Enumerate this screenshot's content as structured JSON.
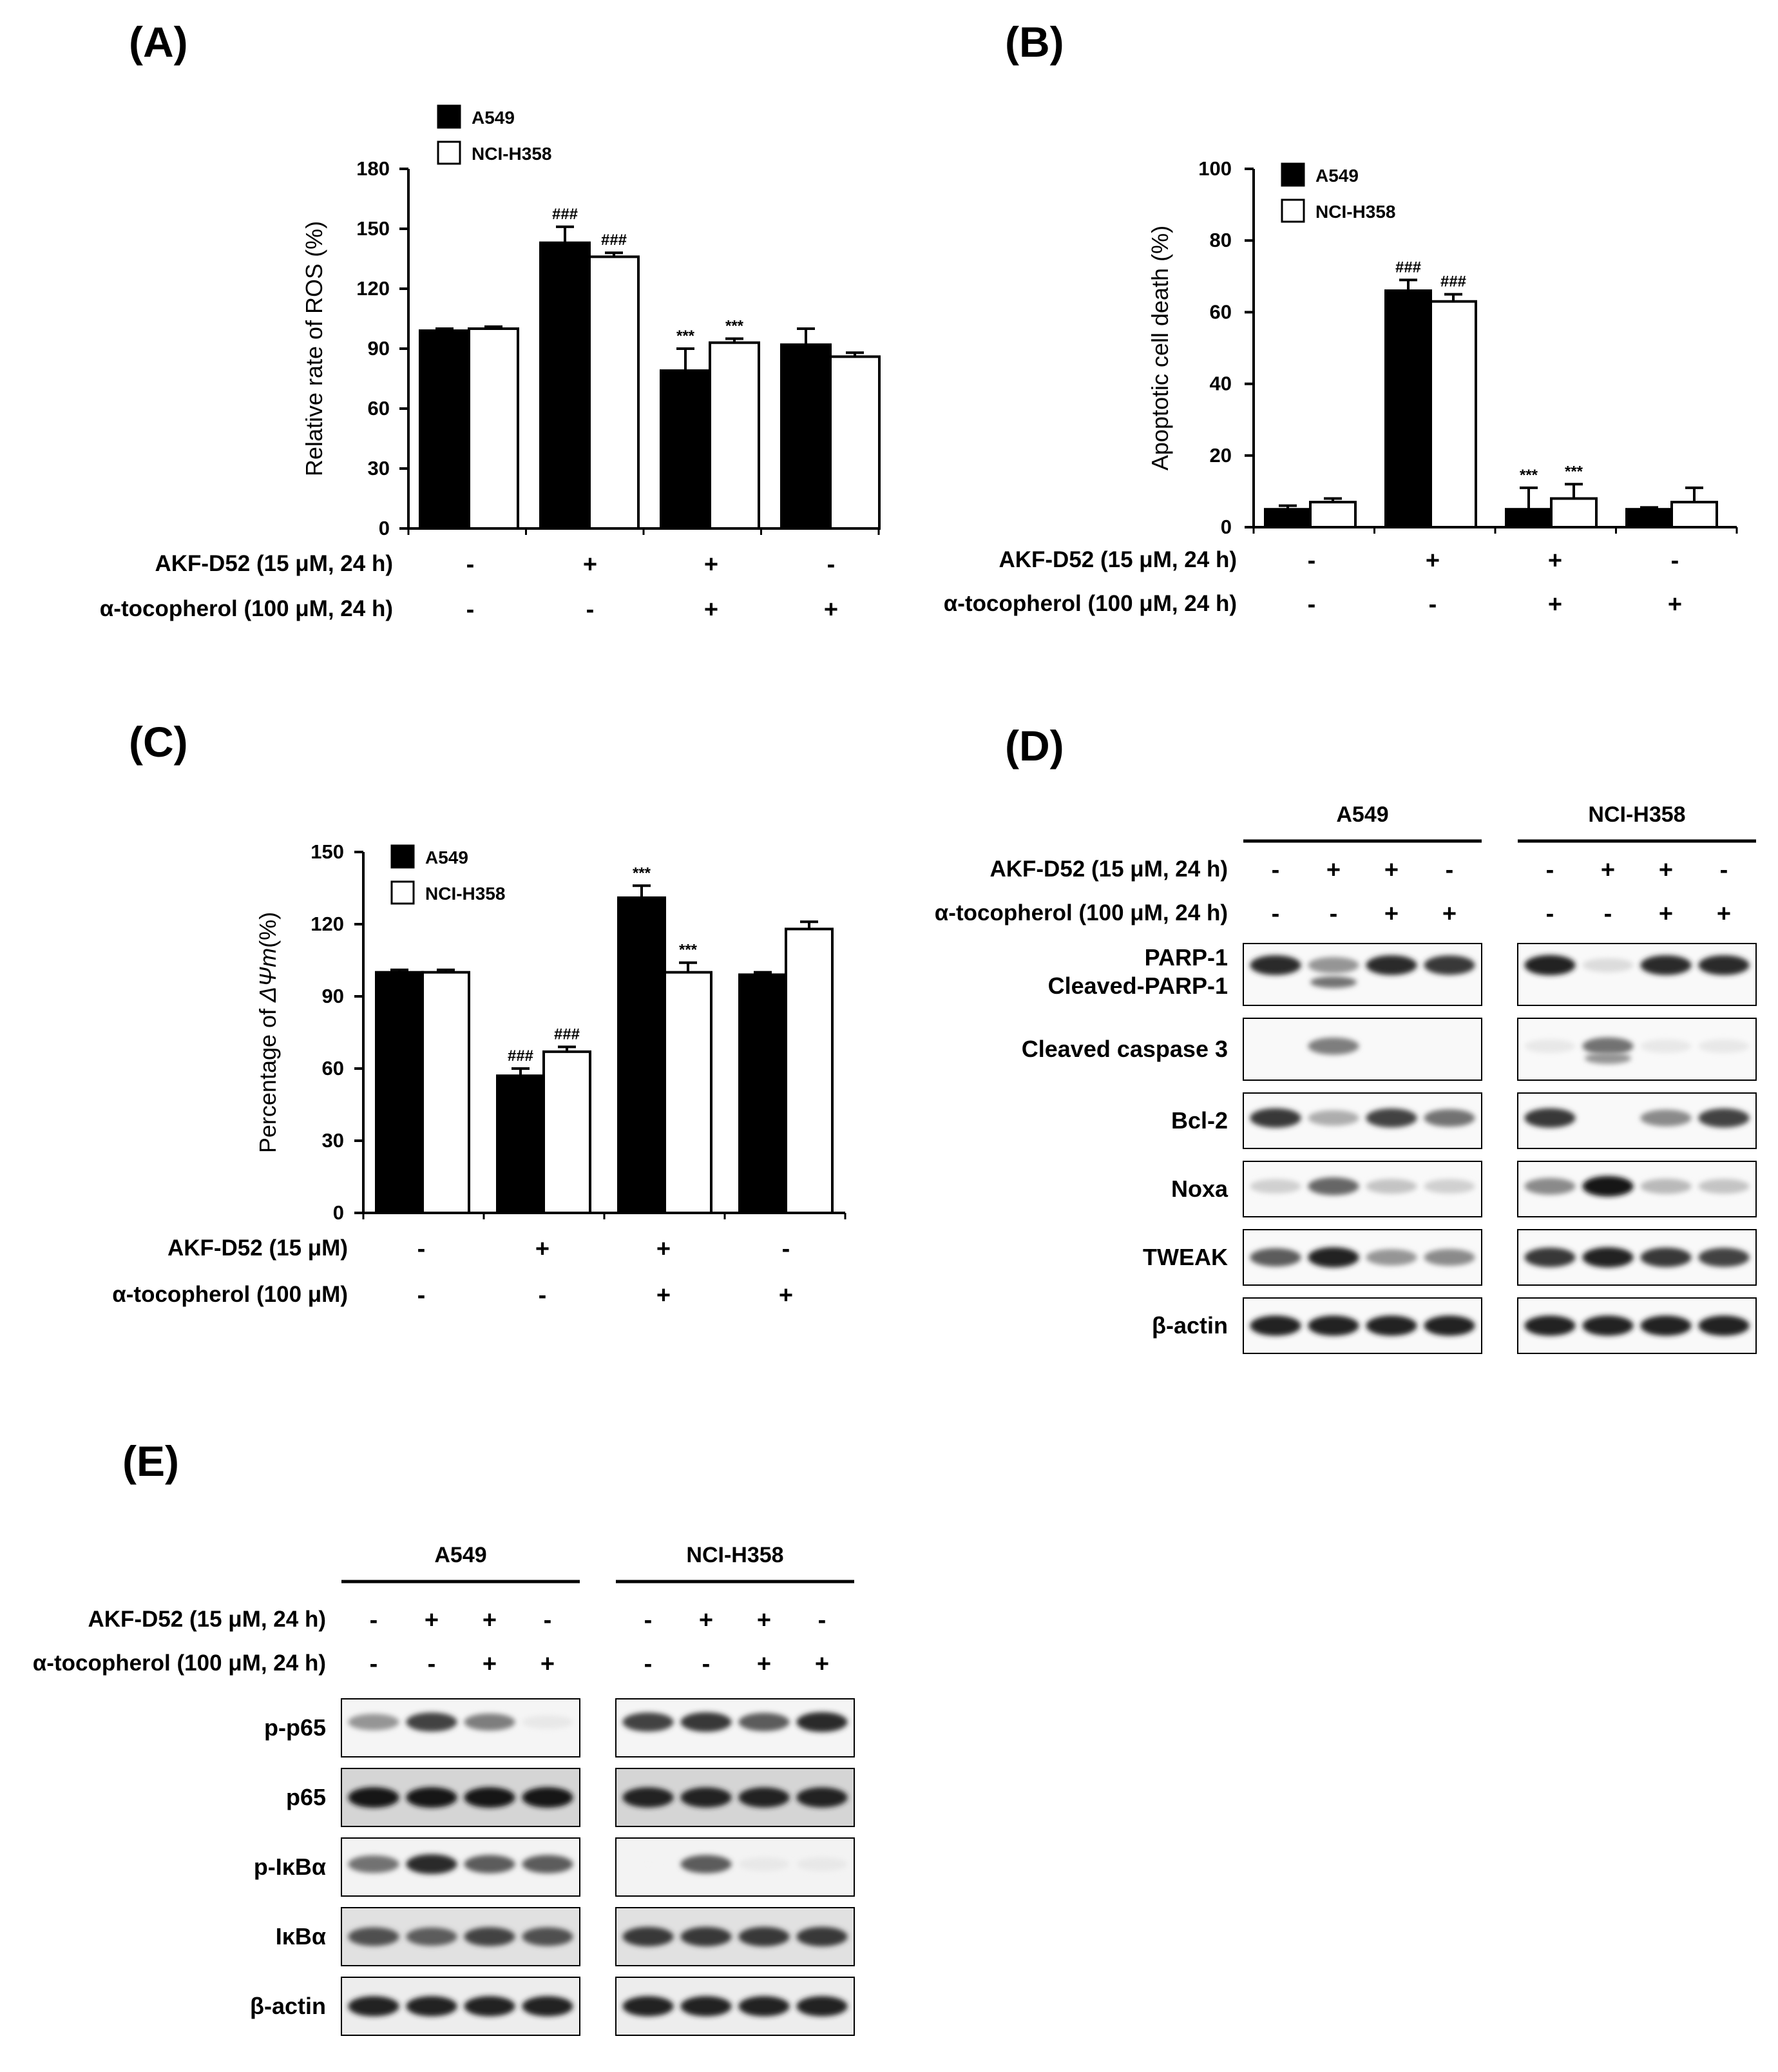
{
  "colors": {
    "a549": "#000000",
    "h358": "#ffffff",
    "axis": "#000000"
  },
  "treatments_common": {
    "plus": "+",
    "minus": "-"
  },
  "chart_data": [
    {
      "panel": "(A)",
      "type": "bar",
      "ylabel": "Relative rate of ROS (%)",
      "ylim": [
        0,
        180
      ],
      "yticks": [
        0,
        30,
        60,
        90,
        120,
        150,
        180
      ],
      "legend_position": "top-left",
      "series": [
        {
          "name": "A549",
          "values": [
            99,
            143,
            79,
            92
          ],
          "errors": [
            1,
            8,
            11,
            8
          ],
          "annotations": [
            "",
            "###",
            "***",
            ""
          ]
        },
        {
          "name": "NCI-H358",
          "values": [
            100,
            136,
            93,
            86
          ],
          "errors": [
            1,
            2,
            2,
            2
          ],
          "annotations": [
            "",
            "###",
            "***",
            ""
          ]
        }
      ],
      "treatment_rows": [
        {
          "label": "AKF-D52 (15 μM, 24 h)",
          "signs": [
            "-",
            "+",
            "+",
            "-"
          ]
        },
        {
          "label": "α-tocopherol (100 μM, 24 h)",
          "signs": [
            "-",
            "-",
            "+",
            "+"
          ]
        }
      ]
    },
    {
      "panel": "(B)",
      "type": "bar",
      "ylabel": "Apoptotic cell death (%)",
      "ylim": [
        0,
        100
      ],
      "yticks": [
        0,
        20,
        40,
        60,
        80,
        100
      ],
      "legend_position": "top-left",
      "series": [
        {
          "name": "A549",
          "values": [
            5,
            66,
            5,
            5
          ],
          "errors": [
            1,
            3,
            6,
            0.5
          ],
          "annotations": [
            "",
            "###",
            "***",
            ""
          ]
        },
        {
          "name": "NCI-H358",
          "values": [
            7,
            63,
            8,
            7
          ],
          "errors": [
            1,
            2,
            4,
            4
          ],
          "annotations": [
            "",
            "###",
            "***",
            ""
          ]
        }
      ],
      "treatment_rows": [
        {
          "label": "AKF-D52 (15 μM, 24 h)",
          "signs": [
            "-",
            "+",
            "+",
            "-"
          ]
        },
        {
          "label": "α-tocopherol (100 μM, 24 h)",
          "signs": [
            "-",
            "-",
            "+",
            "+"
          ]
        }
      ]
    },
    {
      "panel": "(C)",
      "type": "bar",
      "ylabel_prefix": "Percentage of ",
      "ylabel_symbol": "ΔΨm",
      "ylabel_suffix": "(%)",
      "ylim": [
        0,
        150
      ],
      "yticks": [
        0,
        30,
        60,
        90,
        120,
        150
      ],
      "legend_position": "top-left",
      "series": [
        {
          "name": "A549",
          "values": [
            100,
            57,
            131,
            99
          ],
          "errors": [
            1,
            3,
            5,
            1
          ],
          "annotations": [
            "",
            "###",
            "***",
            ""
          ]
        },
        {
          "name": "NCI-H358",
          "values": [
            100,
            67,
            100,
            118
          ],
          "errors": [
            1,
            2,
            4,
            3
          ],
          "annotations": [
            "",
            "###",
            "***",
            ""
          ]
        }
      ],
      "treatment_rows": [
        {
          "label": "AKF-D52 (15 μM)",
          "signs": [
            "-",
            "+",
            "+",
            "-"
          ]
        },
        {
          "label": "α-tocopherol (100 μM)",
          "signs": [
            "-",
            "-",
            "+",
            "+"
          ]
        }
      ]
    }
  ],
  "blot_d": {
    "panel": "(D)",
    "groups": [
      "A549",
      "NCI-H358"
    ],
    "treatment_rows": [
      {
        "label": "AKF-D52 (15 μM, 24 h)",
        "signs": [
          "-",
          "+",
          "+",
          "-"
        ]
      },
      {
        "label": "α-tocopherol (100 μM, 24 h)",
        "signs": [
          "-",
          "-",
          "+",
          "+"
        ]
      }
    ],
    "rows": [
      {
        "labels": [
          "PARP-1",
          "Cleaved-PARP-1"
        ]
      },
      {
        "labels": [
          "Cleaved caspase 3"
        ]
      },
      {
        "labels": [
          "Bcl-2"
        ]
      },
      {
        "labels": [
          "Noxa"
        ]
      },
      {
        "labels": [
          "TWEAK"
        ]
      },
      {
        "labels": [
          "β-actin"
        ]
      }
    ]
  },
  "blot_e": {
    "panel": "(E)",
    "groups": [
      "A549",
      "NCI-H358"
    ],
    "treatment_rows": [
      {
        "label": "AKF-D52 (15 μM, 24 h)",
        "signs": [
          "-",
          "+",
          "+",
          "-"
        ]
      },
      {
        "label": "α-tocopherol (100 μM, 24 h)",
        "signs": [
          "-",
          "-",
          "+",
          "+"
        ]
      }
    ],
    "rows": [
      {
        "labels": [
          "p-p65"
        ]
      },
      {
        "labels": [
          "p65"
        ]
      },
      {
        "labels": [
          "p-IκBα"
        ]
      },
      {
        "labels": [
          "IκBα"
        ]
      },
      {
        "labels": [
          "β-actin"
        ]
      }
    ]
  }
}
